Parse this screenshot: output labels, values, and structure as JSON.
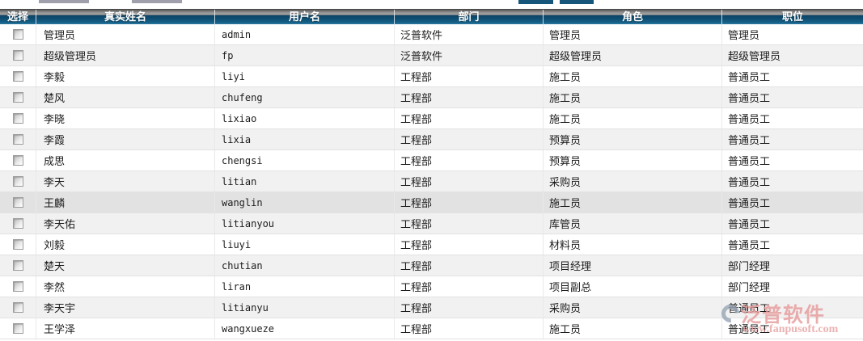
{
  "toolbar": {
    "note_fragments": "cropped controls at top edge",
    "input_fragment_color": "#9fa0ab",
    "button_fragment_color": "#15567a"
  },
  "table": {
    "columns": [
      "选择",
      "真实姓名",
      "用户名",
      "部门",
      "角色",
      "职位"
    ],
    "rows": [
      {
        "name": "管理员",
        "username": "admin",
        "dept": "泛普软件",
        "role": "管理员",
        "position": "管理员",
        "checked": false,
        "highlighted": false
      },
      {
        "name": "超级管理员",
        "username": "fp",
        "dept": "泛普软件",
        "role": "超级管理员",
        "position": "超级管理员",
        "checked": false,
        "highlighted": false
      },
      {
        "name": "李毅",
        "username": "liyi",
        "dept": "工程部",
        "role": "施工员",
        "position": "普通员工",
        "checked": false,
        "highlighted": false
      },
      {
        "name": "楚风",
        "username": "chufeng",
        "dept": "工程部",
        "role": "施工员",
        "position": "普通员工",
        "checked": false,
        "highlighted": false
      },
      {
        "name": "李晓",
        "username": "lixiao",
        "dept": "工程部",
        "role": "施工员",
        "position": "普通员工",
        "checked": false,
        "highlighted": false
      },
      {
        "name": "李霞",
        "username": "lixia",
        "dept": "工程部",
        "role": "预算员",
        "position": "普通员工",
        "checked": false,
        "highlighted": false
      },
      {
        "name": "成思",
        "username": "chengsi",
        "dept": "工程部",
        "role": "预算员",
        "position": "普通员工",
        "checked": false,
        "highlighted": false
      },
      {
        "name": "李天",
        "username": "litian",
        "dept": "工程部",
        "role": "采购员",
        "position": "普通员工",
        "checked": false,
        "highlighted": false
      },
      {
        "name": "王麟",
        "username": "wanglin",
        "dept": "工程部",
        "role": "施工员",
        "position": "普通员工",
        "checked": false,
        "highlighted": true
      },
      {
        "name": "李天佑",
        "username": "litianyou",
        "dept": "工程部",
        "role": "库管员",
        "position": "普通员工",
        "checked": false,
        "highlighted": false
      },
      {
        "name": "刘毅",
        "username": "liuyi",
        "dept": "工程部",
        "role": "材料员",
        "position": "普通员工",
        "checked": false,
        "highlighted": false
      },
      {
        "name": "楚天",
        "username": "chutian",
        "dept": "工程部",
        "role": "项目经理",
        "position": "部门经理",
        "checked": false,
        "highlighted": false
      },
      {
        "name": "李然",
        "username": "liran",
        "dept": "工程部",
        "role": "项目副总",
        "position": "部门经理",
        "checked": false,
        "highlighted": false
      },
      {
        "name": "李天宇",
        "username": "litianyu",
        "dept": "工程部",
        "role": "采购员",
        "position": "普通员工",
        "checked": false,
        "highlighted": false
      },
      {
        "name": "王学泽",
        "username": "wangxueze",
        "dept": "工程部",
        "role": "施工员",
        "position": "普通员工",
        "checked": false,
        "highlighted": false
      }
    ]
  },
  "watermark": {
    "brand": "泛普软件",
    "url": "www.fanpusoft.com",
    "brand_color": "#e79a9a"
  },
  "colors": {
    "header_blue": "#0f4f73",
    "header_grey": "#a8a8a8",
    "row_alt": "#f1f1f1",
    "row_highlight": "#e2e2e2",
    "border": "#e2e2e2"
  }
}
